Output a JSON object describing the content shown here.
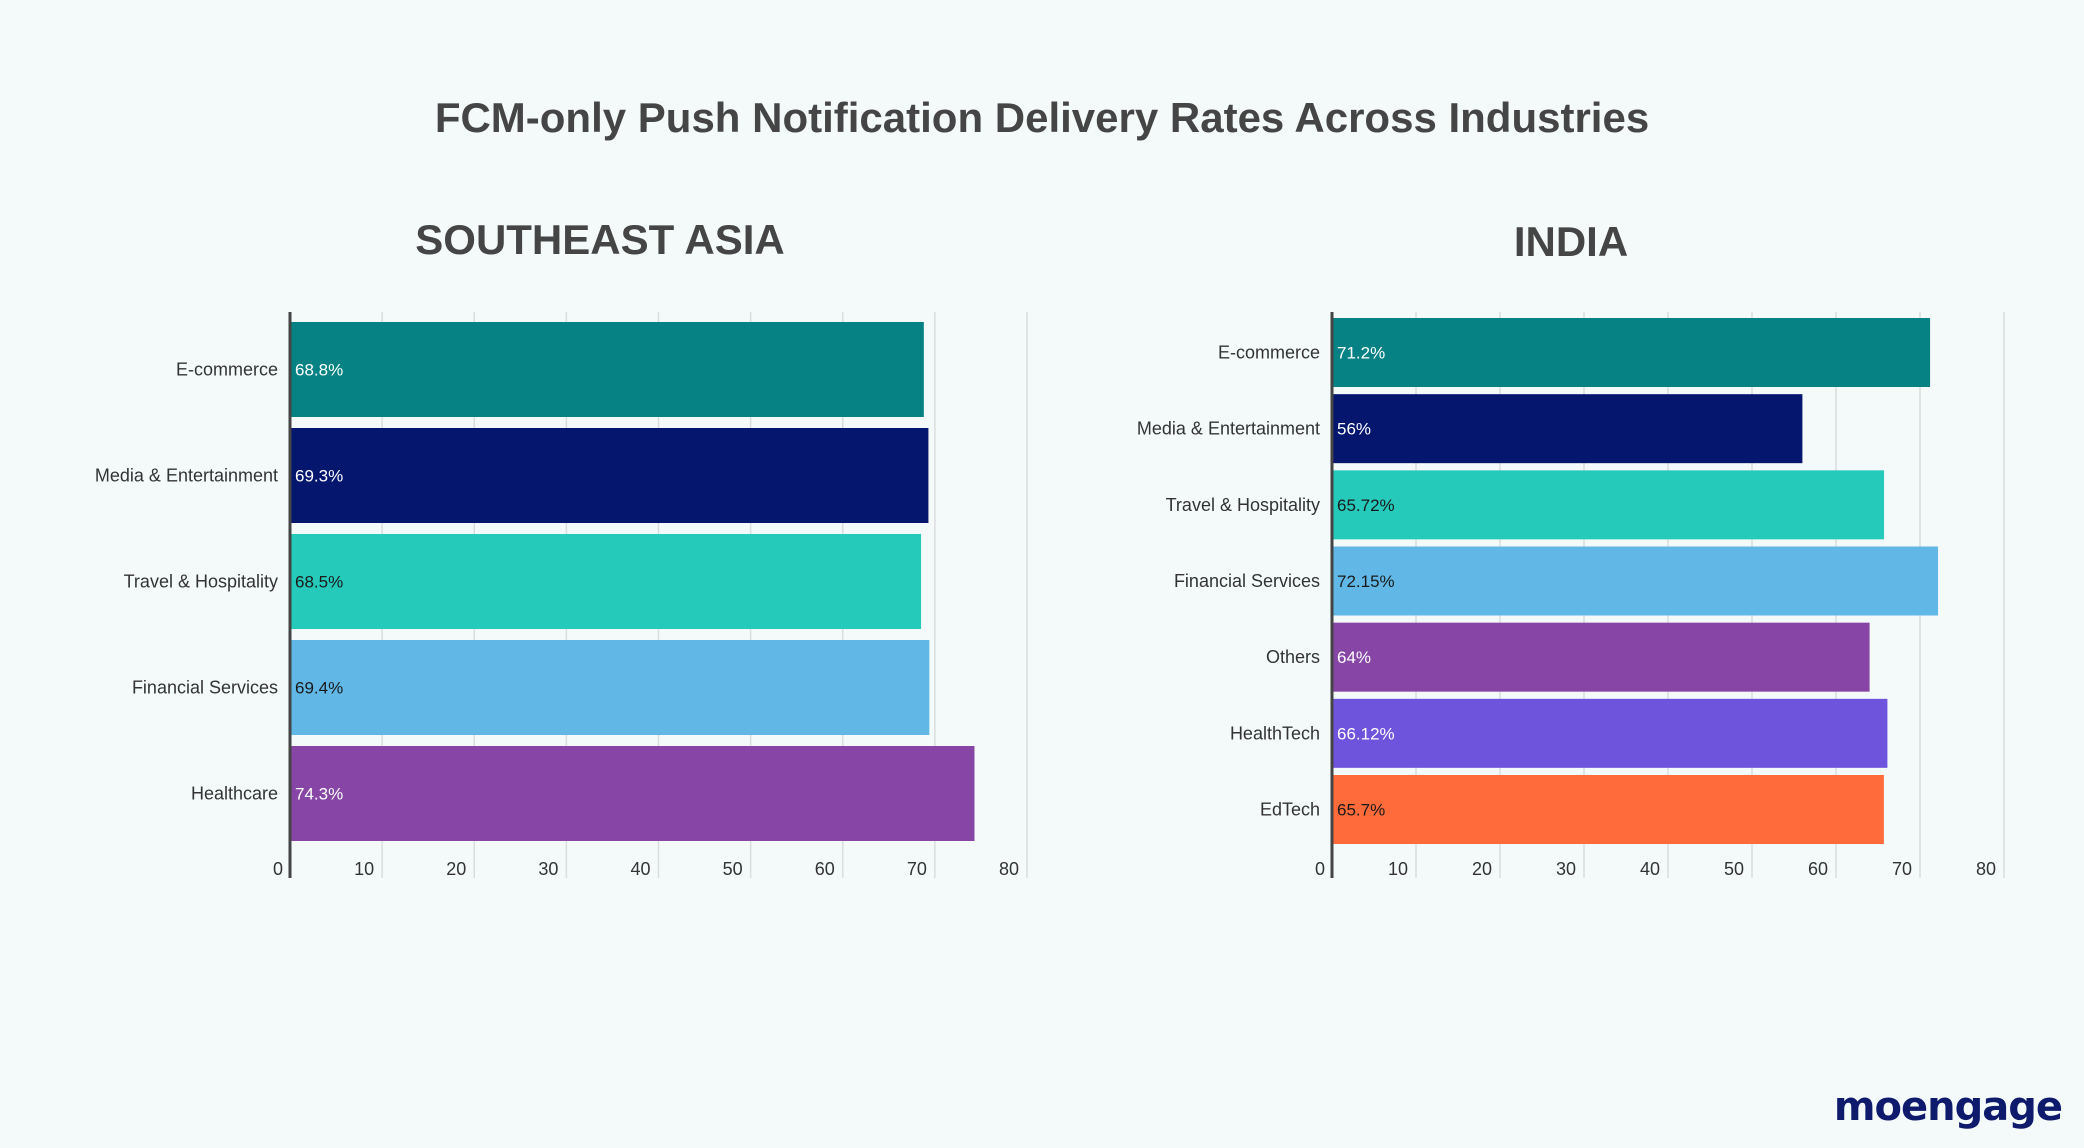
{
  "title": "FCM-only Push Notification Delivery Rates Across Industries",
  "logo": "moengage",
  "colors": {
    "teal": "#068284",
    "navy": "#05166f",
    "aqua": "#26cabb",
    "sky": "#61b8e6",
    "purple": "#8746a6",
    "violet": "#6e53dc",
    "orange": "#ff6b3a"
  },
  "chart_data": [
    {
      "type": "bar",
      "orientation": "horizontal",
      "title": "SOUTHEAST ASIA",
      "categories": [
        "E-commerce",
        "Media & Entertainment",
        "Travel & Hospitality",
        "Financial Services",
        "Healthcare"
      ],
      "values": [
        68.8,
        69.3,
        68.5,
        69.4,
        74.3
      ],
      "value_labels": [
        "68.8%",
        "69.3%",
        "68.5%",
        "69.4%",
        "74.3%"
      ],
      "bar_colors": [
        "#068284",
        "#05166f",
        "#26cabb",
        "#61b8e6",
        "#8746a6"
      ],
      "label_colors": [
        "#ffffff",
        "#ffffff",
        "#1a1a1a",
        "#1a1a1a",
        "#ffffff"
      ],
      "xlim": [
        0,
        80
      ],
      "xticks": [
        0,
        10,
        20,
        30,
        40,
        50,
        60,
        70,
        80
      ],
      "grid": true
    },
    {
      "type": "bar",
      "orientation": "horizontal",
      "title": "INDIA",
      "categories": [
        "E-commerce",
        "Media & Entertainment",
        "Travel & Hospitality",
        "Financial Services",
        "Others",
        "HealthTech",
        "EdTech"
      ],
      "values": [
        71.2,
        56,
        65.72,
        72.15,
        64,
        66.12,
        65.7
      ],
      "value_labels": [
        "71.2%",
        "56%",
        "65.72%",
        "72.15%",
        "64%",
        "66.12%",
        "65.7%"
      ],
      "bar_colors": [
        "#068284",
        "#05166f",
        "#26cabb",
        "#61b8e6",
        "#8746a6",
        "#6e53dc",
        "#ff6b3a"
      ],
      "label_colors": [
        "#ffffff",
        "#ffffff",
        "#1a1a1a",
        "#1a1a1a",
        "#ffffff",
        "#ffffff",
        "#1a1a1a"
      ],
      "xlim": [
        0,
        80
      ],
      "xticks": [
        0,
        10,
        20,
        30,
        40,
        50,
        60,
        70,
        80
      ],
      "grid": true
    }
  ]
}
